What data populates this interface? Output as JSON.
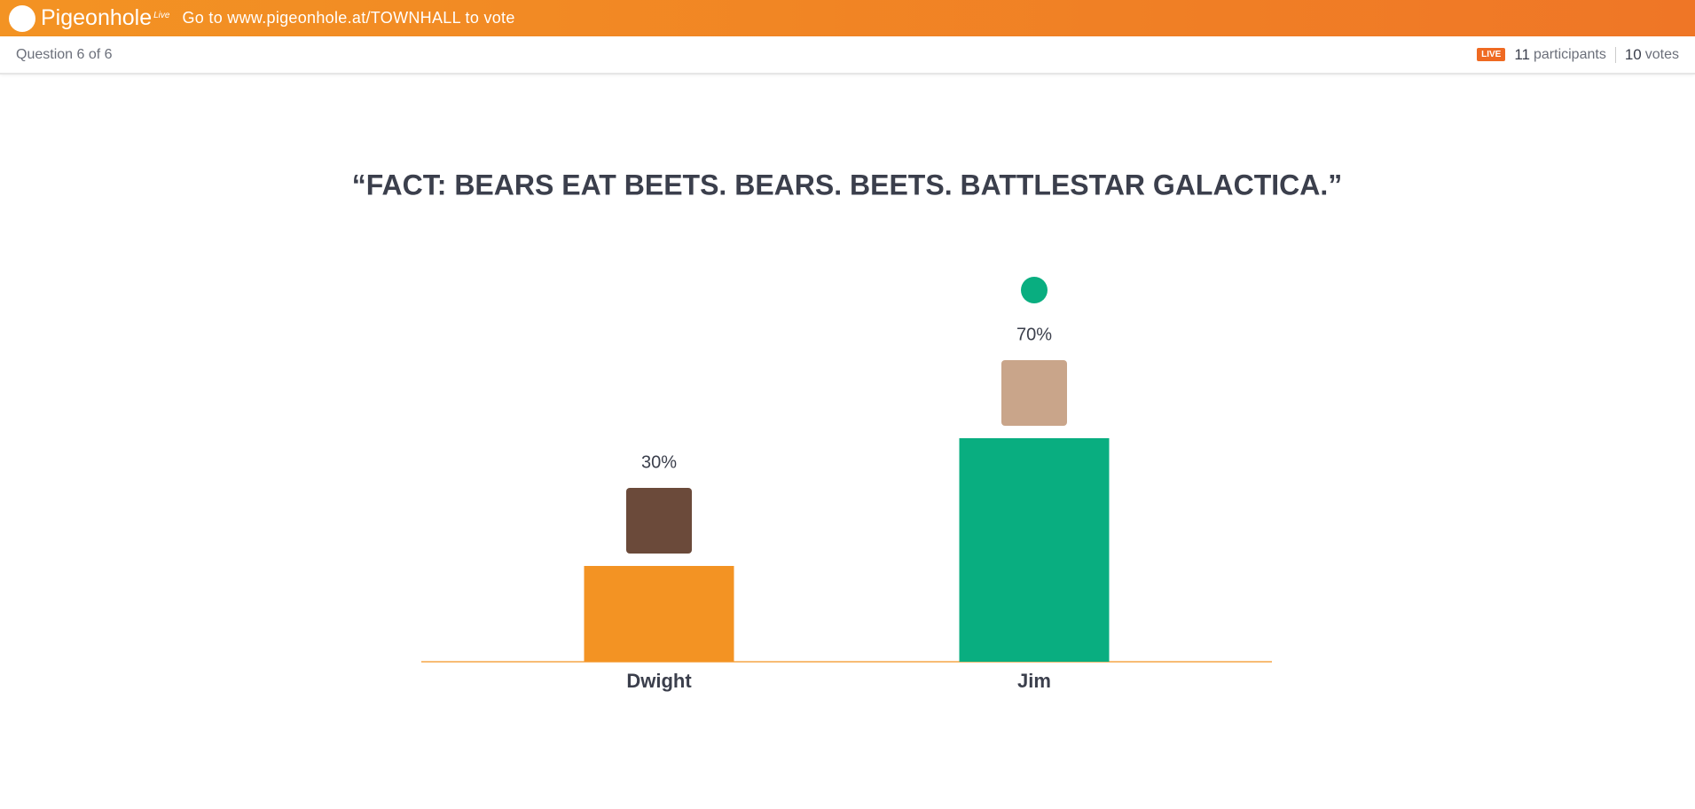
{
  "header": {
    "logo": "Pigeonhole",
    "logo_sup": "Live",
    "instruction": "Go to www.pigeonhole.at/TOWNHALL to vote"
  },
  "subheader": {
    "question": "Question 6 of 6",
    "live": "LIVE",
    "participants": 11,
    "participants_label": "participants",
    "votes": 10,
    "votes_label": "votes"
  },
  "chart_data": {
    "type": "bar",
    "title": "“FACT: BEARS EAT BEETS. BEARS. BEETS. BATTLESTAR GALACTICA.”",
    "categories": [
      "Dwight",
      "Jim"
    ],
    "values": [
      30,
      70
    ],
    "value_labels": [
      "30%",
      "70%"
    ],
    "colors": [
      "#f39323",
      "#09ae80"
    ]
  }
}
